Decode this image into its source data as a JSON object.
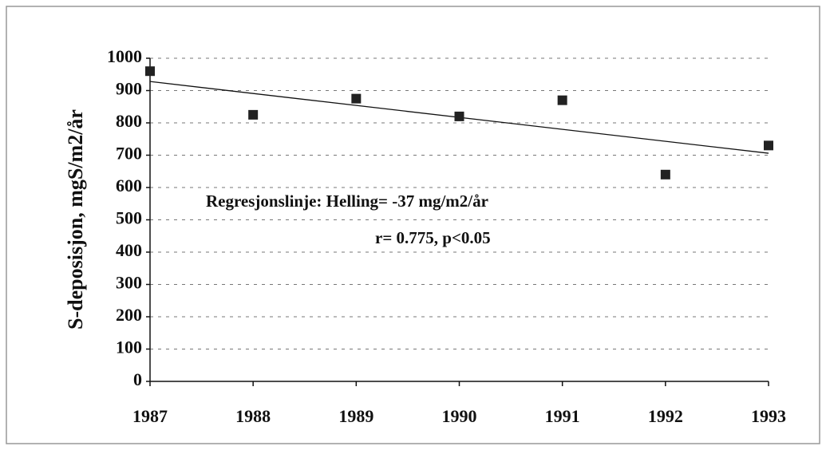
{
  "chart_data": {
    "type": "scatter",
    "y_label": "S-deposisjon, mgS/m2/år",
    "annotations": [
      "Regresjonslinje: Helling= -37 mg/m2/år",
      "r= 0.775,  p<0.05"
    ],
    "x": [
      1987,
      1988,
      1989,
      1990,
      1991,
      1992,
      1993
    ],
    "values": [
      960,
      825,
      875,
      820,
      870,
      640,
      730
    ],
    "color": "#222222",
    "trendline": {
      "x": [
        1987,
        1993
      ],
      "values": [
        928,
        706
      ],
      "color": "#111111"
    },
    "xlim": [
      1987,
      1993
    ],
    "xticks": [
      1987,
      1988,
      1989,
      1990,
      1991,
      1992,
      1993
    ],
    "ylim": [
      0,
      1000
    ],
    "yticks": [
      0,
      100,
      200,
      300,
      400,
      500,
      600,
      700,
      800,
      900,
      1000
    ],
    "grid": true
  }
}
